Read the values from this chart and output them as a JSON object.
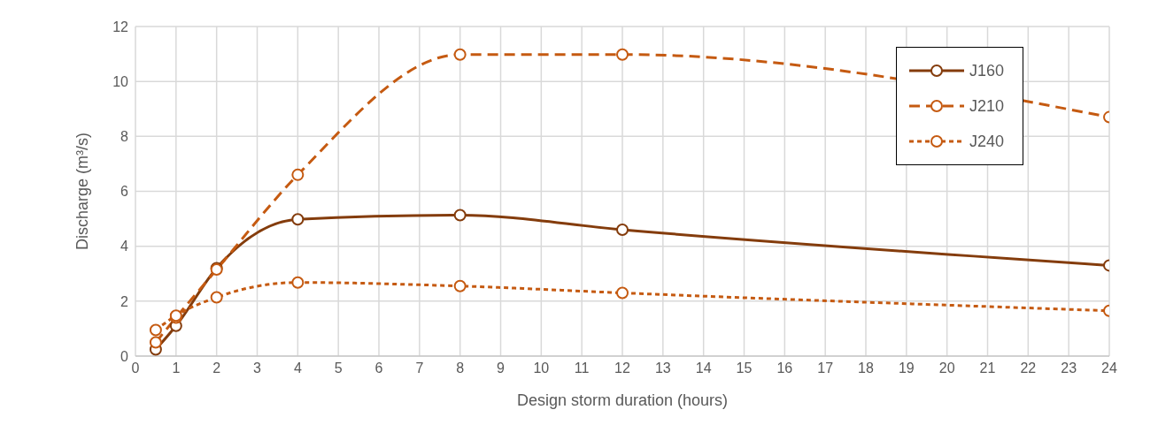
{
  "chart_data": {
    "type": "line",
    "xlabel": "Design storm duration (hours)",
    "ylabel": "Discharge (m³/s)",
    "x": [
      0.5,
      1,
      2,
      4,
      8,
      12,
      24
    ],
    "series": [
      {
        "name": "J160",
        "color": "#843c0c",
        "line_style": "solid",
        "values": [
          0.24,
          1.1,
          3.2,
          4.98,
          5.13,
          4.6,
          3.3
        ]
      },
      {
        "name": "J210",
        "color": "#c55a11",
        "line_style": "dashed",
        "values": [
          0.5,
          1.4,
          3.15,
          6.6,
          10.98,
          10.98,
          8.7
        ]
      },
      {
        "name": "J240",
        "color": "#c55a11",
        "line_style": "dotted",
        "values": [
          0.95,
          1.47,
          2.14,
          2.68,
          2.55,
          2.3,
          1.65
        ]
      }
    ],
    "xlim": [
      0,
      24
    ],
    "xticks": [
      0,
      1,
      2,
      3,
      4,
      5,
      6,
      7,
      8,
      9,
      10,
      11,
      12,
      13,
      14,
      15,
      16,
      17,
      18,
      19,
      20,
      21,
      22,
      23,
      24
    ],
    "ylim": [
      0,
      12
    ],
    "yticks": [
      0,
      2,
      4,
      6,
      8,
      10,
      12
    ],
    "grid": true,
    "legend": "top right",
    "marker": "circle"
  }
}
